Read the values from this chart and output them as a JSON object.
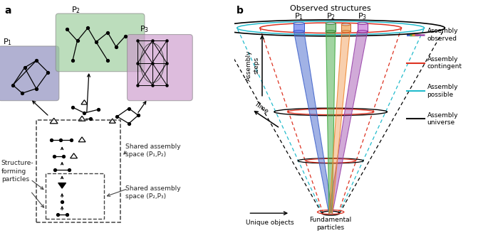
{
  "p1_color": "#8888bb",
  "p2_color": "#99cc99",
  "p3_color": "#cc99cc",
  "observed_title": "Observed structures",
  "shared12_label": "Shared assembly\nspace (P₁,P₂)",
  "shared23_label": "Shared assembly\nspace (P₂,P₃)",
  "structure_label": "Structure-\nforming\nparticles",
  "legend_observed": "Assembly\nobserved",
  "legend_contingent": "Assembly\ncontingent",
  "legend_possible": "Assembly\npossible",
  "legend_universe": "Assembly\nuniverse",
  "color_blue": "#4466cc",
  "color_green": "#44aa44",
  "color_orange": "#ee8833",
  "color_purple": "#9944aa",
  "color_red": "#dd3322",
  "color_cyan": "#22bbcc",
  "color_black": "#111111"
}
